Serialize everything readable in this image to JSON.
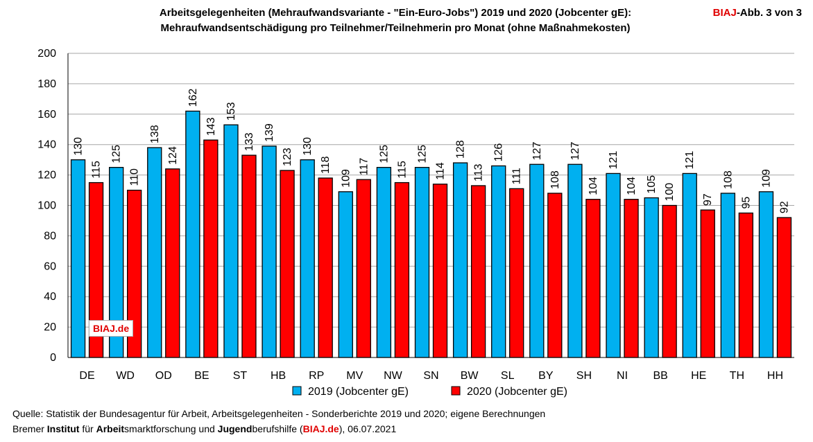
{
  "header": {
    "title_line1": "Arbeitsgelegenheiten (Mehraufwandsvariante - \"Ein-Euro-Jobs\") 2019 und 2020 (Jobcenter gE):",
    "title_line2": "Mehraufwandsentschädigung pro Teilnehmer/Teilnehmerin pro Monat (ohne Maßnahmekosten)",
    "badge_red": "BIAJ",
    "badge_rest": "-Abb. 3 von 3"
  },
  "watermark": "BIAJ.de",
  "footer": {
    "source": "Quelle: Statistik der Bundesagentur für Arbeit, Arbeitsgelegenheiten - Sonderberichte 2019 und 2020; eigene Berechnungen",
    "line2_p1": "Bremer ",
    "line2_b1": "Institut",
    "line2_p2": " für ",
    "line2_b2": "Arbeit",
    "line2_p3": "smarktforschung und ",
    "line2_b3": "Jugend",
    "line2_p4": "berufshilfe (",
    "line2_red": "BIAJ.de",
    "line2_p5": "), 06.07.2021"
  },
  "colors": {
    "series2019": "#00b0f0",
    "series2020": "#ff0000",
    "grid": "#a6a6a6"
  },
  "chart_data": {
    "type": "bar",
    "categories": [
      "DE",
      "WD",
      "OD",
      "BE",
      "ST",
      "HB",
      "RP",
      "MV",
      "NW",
      "SN",
      "BW",
      "SL",
      "BY",
      "SH",
      "NI",
      "BB",
      "HE",
      "TH",
      "HH"
    ],
    "series": [
      {
        "name": "2019 (Jobcenter gE)",
        "values": [
          130,
          125,
          138,
          162,
          153,
          139,
          130,
          109,
          125,
          125,
          128,
          126,
          127,
          127,
          121,
          105,
          121,
          108,
          109
        ]
      },
      {
        "name": "2020 (Jobcenter gE)",
        "values": [
          115,
          110,
          124,
          143,
          133,
          123,
          118,
          117,
          115,
          114,
          113,
          111,
          108,
          104,
          104,
          100,
          97,
          95,
          92
        ]
      }
    ],
    "yticks": [
      "0",
      "20",
      "40",
      "60",
      "80",
      "100",
      "120",
      "140",
      "160",
      "180",
      "200"
    ],
    "ylim": [
      0,
      200
    ],
    "grid": true,
    "legend_position": "bottom-center"
  }
}
